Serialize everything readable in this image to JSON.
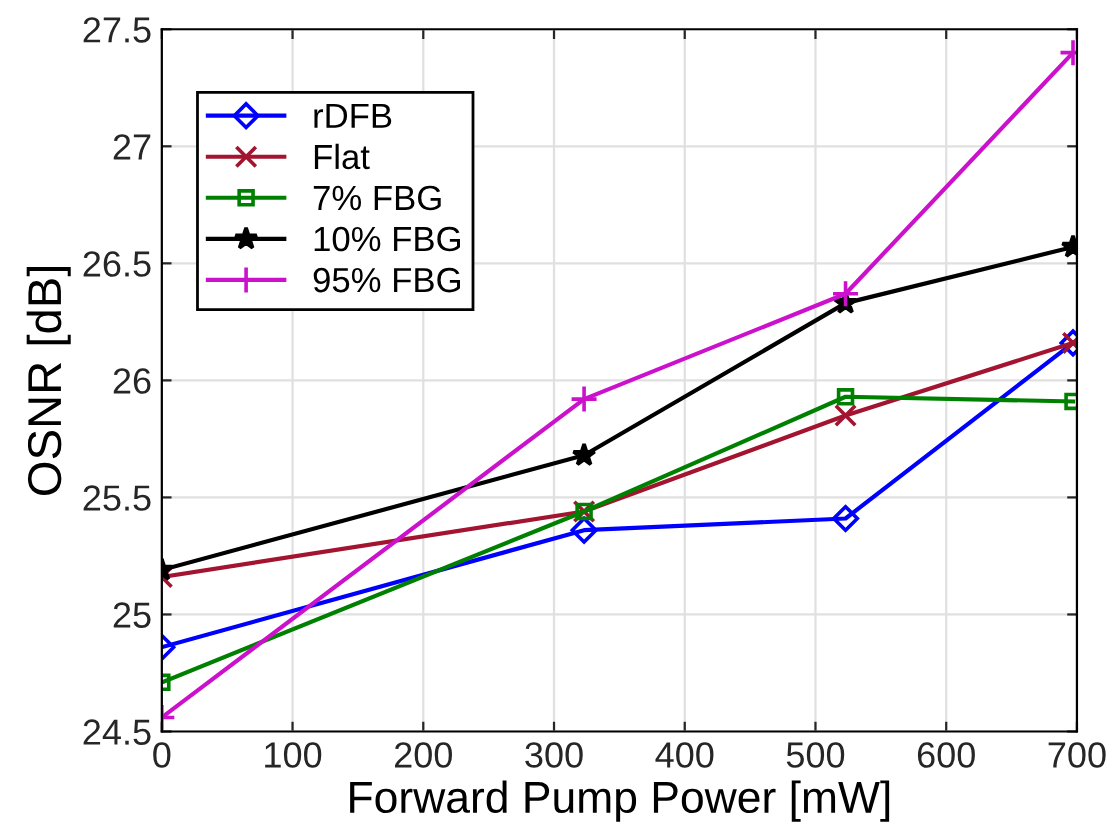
{
  "chart_data": {
    "type": "line",
    "xlabel": "Forward Pump Power [mW]",
    "ylabel": "OSNR [dB]",
    "x": [
      0,
      323,
      523,
      697
    ],
    "series": [
      {
        "name": "rDFB",
        "color": "#0000ff",
        "marker": "diamond",
        "values": [
          24.86,
          25.36,
          25.41,
          26.16
        ]
      },
      {
        "name": "Flat",
        "color": "#a2142f",
        "marker": "cross",
        "values": [
          25.16,
          25.44,
          25.85,
          26.16
        ]
      },
      {
        "name": "7% FBG",
        "color": "#008000",
        "marker": "square",
        "values": [
          24.71,
          25.44,
          25.93,
          25.91
        ]
      },
      {
        "name": "10% FBG",
        "color": "#000000",
        "marker": "star",
        "values": [
          25.19,
          25.68,
          26.33,
          26.57
        ]
      },
      {
        "name": "95% FBG",
        "color": "#cc11cc",
        "marker": "plus",
        "values": [
          24.56,
          25.92,
          26.37,
          27.4
        ]
      }
    ],
    "xlim": [
      0,
      700
    ],
    "xticks": [
      0,
      100,
      200,
      300,
      400,
      500,
      600,
      700
    ],
    "ylim": [
      24.5,
      27.5
    ],
    "yticks": [
      24.5,
      25,
      25.5,
      26,
      26.5,
      27,
      27.5
    ],
    "grid": true,
    "legend": "top left",
    "line_style": "solid"
  }
}
